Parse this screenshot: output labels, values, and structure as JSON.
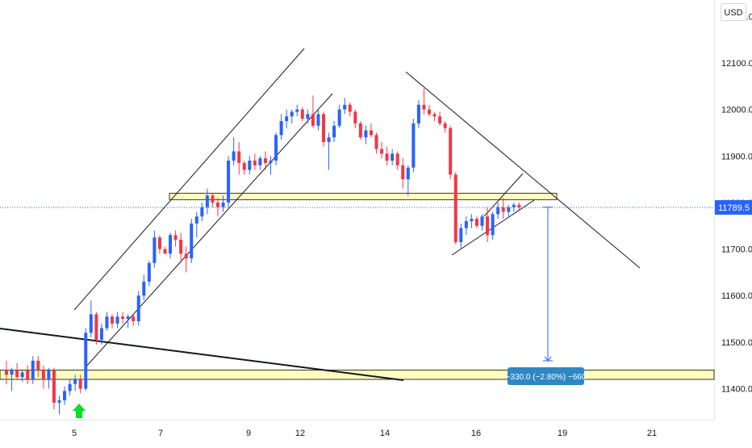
{
  "currency": "USD",
  "last_price_label": "11789.5",
  "measure_label": "−330.0 (−2.80%) −660",
  "colors": {
    "up": "#2962ff",
    "down": "#f23645",
    "zone_fill": "#fffcc0",
    "zone_stroke": "#3a3a12",
    "price_line": "#2962ff",
    "measure": "#2962ff",
    "measure_label_bg": "#2f87c6",
    "signal_arrow": "#00e025",
    "trendline": "#131722",
    "axis_text": "#131722"
  },
  "signal_icon": "green-up-arrow-icon",
  "chart_data": {
    "type": "candlestick",
    "title": "",
    "xlabel": "",
    "ylabel": "",
    "ylim": [
      11350,
      12200
    ],
    "y_ticks": [
      "11400.0",
      "11500.0",
      "11600.0",
      "11700.0",
      "11800.0",
      "11900.0",
      "12000.0",
      "12100.0",
      "12200.0"
    ],
    "x_ticks": [
      "5",
      "7",
      "9",
      "12",
      "14",
      "16",
      "19",
      "21"
    ],
    "grid": false,
    "legend": "none",
    "last_price": 11789.5,
    "series": [
      {
        "values": [
          [
            11440,
            11460,
            11410,
            11430
          ],
          [
            11430,
            11445,
            11395,
            11440
          ],
          [
            11440,
            11455,
            11420,
            11425
          ],
          [
            11425,
            11440,
            11415,
            11435
          ],
          [
            11440,
            11450,
            11410,
            11420
          ],
          [
            11420,
            11470,
            11410,
            11460
          ],
          [
            11460,
            11470,
            11425,
            11440
          ],
          [
            11440,
            11450,
            11400,
            11420
          ],
          [
            11420,
            11445,
            11400,
            11440
          ],
          [
            11440,
            11445,
            11355,
            11370
          ],
          [
            11370,
            11385,
            11345,
            11375
          ],
          [
            11375,
            11405,
            11365,
            11395
          ],
          [
            11395,
            11420,
            11385,
            11410
          ],
          [
            11410,
            11430,
            11395,
            11420
          ],
          [
            11420,
            11430,
            11390,
            11400
          ],
          [
            11400,
            11530,
            11395,
            11520
          ],
          [
            11520,
            11590,
            11510,
            11560
          ],
          [
            11560,
            11565,
            11495,
            11505
          ],
          [
            11505,
            11540,
            11495,
            11530
          ],
          [
            11530,
            11565,
            11525,
            11555
          ],
          [
            11555,
            11560,
            11530,
            11540
          ],
          [
            11540,
            11565,
            11530,
            11555
          ],
          [
            11555,
            11565,
            11540,
            11550
          ],
          [
            11550,
            11560,
            11530,
            11555
          ],
          [
            11555,
            11560,
            11535,
            11545
          ],
          [
            11545,
            11610,
            11535,
            11600
          ],
          [
            11600,
            11645,
            11590,
            11630
          ],
          [
            11630,
            11675,
            11620,
            11670
          ],
          [
            11670,
            11740,
            11660,
            11725
          ],
          [
            11725,
            11730,
            11690,
            11700
          ],
          [
            11700,
            11705,
            11690,
            11690
          ],
          [
            11690,
            11735,
            11680,
            11730
          ],
          [
            11730,
            11740,
            11705,
            11720
          ],
          [
            11720,
            11735,
            11670,
            11690
          ],
          [
            11690,
            11705,
            11650,
            11680
          ],
          [
            11680,
            11765,
            11670,
            11755
          ],
          [
            11755,
            11780,
            11725,
            11770
          ],
          [
            11770,
            11800,
            11760,
            11790
          ],
          [
            11790,
            11830,
            11775,
            11815
          ],
          [
            11815,
            11820,
            11790,
            11800
          ],
          [
            11800,
            11810,
            11770,
            11790
          ],
          [
            11790,
            11815,
            11780,
            11800
          ],
          [
            11800,
            11900,
            11790,
            11890
          ],
          [
            11890,
            11940,
            11880,
            11910
          ],
          [
            11910,
            11930,
            11860,
            11885
          ],
          [
            11885,
            11890,
            11860,
            11870
          ],
          [
            11870,
            11900,
            11860,
            11890
          ],
          [
            11890,
            11905,
            11870,
            11880
          ],
          [
            11880,
            11900,
            11870,
            11895
          ],
          [
            11895,
            11910,
            11870,
            11885
          ],
          [
            11885,
            11900,
            11860,
            11890
          ],
          [
            11890,
            11950,
            11880,
            11945
          ],
          [
            11945,
            11990,
            11935,
            11975
          ],
          [
            11975,
            12000,
            11960,
            11985
          ],
          [
            11985,
            12000,
            11970,
            11995
          ],
          [
            11995,
            12010,
            11985,
            12000
          ],
          [
            12000,
            12005,
            11975,
            11980
          ],
          [
            11980,
            12000,
            11970,
            11990
          ],
          [
            11990,
            12030,
            11960,
            11965
          ],
          [
            11965,
            12000,
            11955,
            11990
          ],
          [
            11990,
            11995,
            11920,
            11930
          ],
          [
            11930,
            11950,
            11870,
            11940
          ],
          [
            11940,
            11975,
            11930,
            11965
          ],
          [
            11965,
            12010,
            11960,
            12000
          ],
          [
            12000,
            12025,
            11990,
            12010
          ],
          [
            12010,
            12015,
            11985,
            11995
          ],
          [
            11995,
            12000,
            11960,
            11970
          ],
          [
            11970,
            11975,
            11935,
            11940
          ],
          [
            11940,
            11965,
            11925,
            11955
          ],
          [
            11955,
            11970,
            11940,
            11945
          ],
          [
            11945,
            11950,
            11905,
            11915
          ],
          [
            11915,
            11930,
            11895,
            11905
          ],
          [
            11905,
            11920,
            11880,
            11890
          ],
          [
            11890,
            11915,
            11880,
            11905
          ],
          [
            11905,
            11910,
            11870,
            11880
          ],
          [
            11880,
            11895,
            11830,
            11850
          ],
          [
            11850,
            11880,
            11815,
            11875
          ],
          [
            11875,
            11980,
            11865,
            11970
          ],
          [
            11970,
            12020,
            11960,
            12010
          ],
          [
            12010,
            12045,
            11990,
            12000
          ],
          [
            12000,
            12010,
            11985,
            11990
          ],
          [
            11990,
            11995,
            11975,
            11985
          ],
          [
            11985,
            11995,
            11965,
            11970
          ],
          [
            11970,
            11975,
            11950,
            11960
          ],
          [
            11960,
            11965,
            11850,
            11860
          ],
          [
            11860,
            11865,
            11710,
            11715
          ],
          [
            11715,
            11755,
            11700,
            11745
          ],
          [
            11745,
            11770,
            11730,
            11760
          ],
          [
            11760,
            11775,
            11745,
            11765
          ],
          [
            11765,
            11770,
            11745,
            11750
          ],
          [
            11750,
            11775,
            11740,
            11770
          ],
          [
            11770,
            11790,
            11715,
            11730
          ],
          [
            11730,
            11780,
            11720,
            11775
          ],
          [
            11775,
            11800,
            11765,
            11790
          ],
          [
            11790,
            11810,
            11765,
            11780
          ],
          [
            11780,
            11795,
            11770,
            11790
          ],
          [
            11790,
            11800,
            11780,
            11795
          ],
          [
            11795,
            11800,
            11785,
            11790
          ]
        ]
      }
    ],
    "annotations": [
      {
        "type": "horizontal-zone",
        "from": 11810,
        "to": 11820
      },
      {
        "type": "horizontal-zone",
        "from": 11420,
        "to": 11440
      },
      {
        "type": "price-range-measure",
        "from": 11790,
        "to": 11460,
        "label": "−330.0 (−2.80%) −660"
      }
    ]
  }
}
